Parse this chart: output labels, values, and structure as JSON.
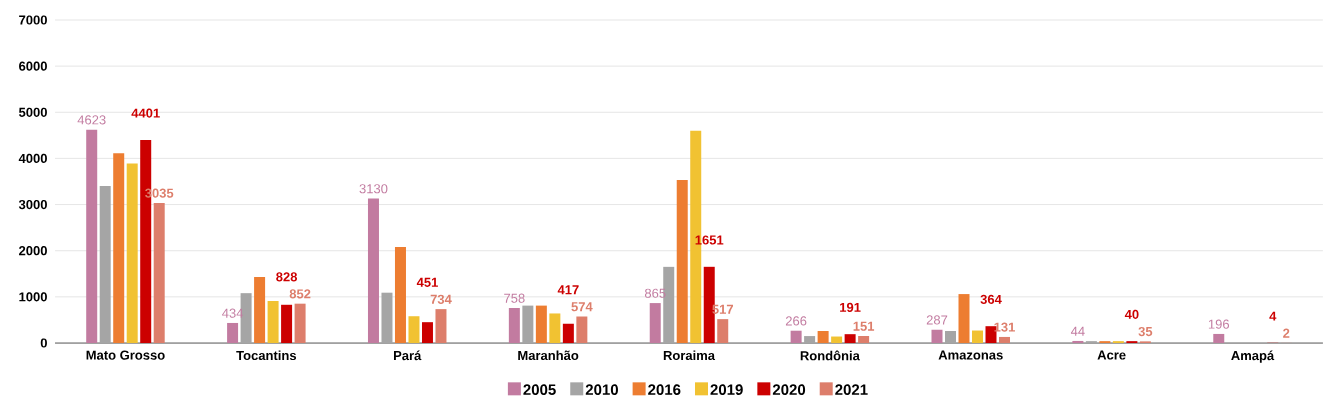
{
  "chart_data": {
    "type": "bar",
    "categories": [
      "Mato Grosso",
      "Tocantins",
      "Pará",
      "Maranhão",
      "Roraima",
      "Rondônia",
      "Amazonas",
      "Acre",
      "Amapá"
    ],
    "series": [
      {
        "name": "2005",
        "color": "#c27ba0",
        "values": [
          4623,
          434,
          3130,
          758,
          865,
          266,
          287,
          44,
          196
        ],
        "value_labels": [
          "4623",
          "434",
          "3130",
          "758",
          "865",
          "266",
          "287",
          "44",
          "196"
        ]
      },
      {
        "name": "2010",
        "color": "#a5a5a5",
        "values": [
          3400,
          1080,
          1090,
          810,
          1650,
          150,
          260,
          40,
          null
        ]
      },
      {
        "name": "2016",
        "color": "#ed7d31",
        "values": [
          4110,
          1430,
          2080,
          810,
          3530,
          260,
          1060,
          40,
          null
        ]
      },
      {
        "name": "2019",
        "color": "#f1c232",
        "values": [
          3890,
          910,
          580,
          640,
          4600,
          140,
          270,
          40,
          null
        ]
      },
      {
        "name": "2020",
        "color": "#cc0000",
        "values": [
          4401,
          828,
          451,
          417,
          1651,
          191,
          364,
          40,
          4
        ],
        "value_labels": [
          "4401",
          "828",
          "451",
          "417",
          "1651",
          "191",
          "364",
          "40",
          "4"
        ]
      },
      {
        "name": "2021",
        "color": "#dd7e6b",
        "values": [
          3035,
          852,
          734,
          574,
          517,
          151,
          131,
          35,
          2
        ],
        "value_labels": [
          "3035",
          "852",
          "734",
          "574",
          "517",
          "151",
          "131",
          "35",
          "2"
        ]
      }
    ],
    "ylim": [
      0,
      7000
    ],
    "yticks": [
      0,
      1000,
      2000,
      3000,
      4000,
      5000,
      6000,
      7000
    ],
    "grid": "y",
    "legend": "bottom"
  }
}
